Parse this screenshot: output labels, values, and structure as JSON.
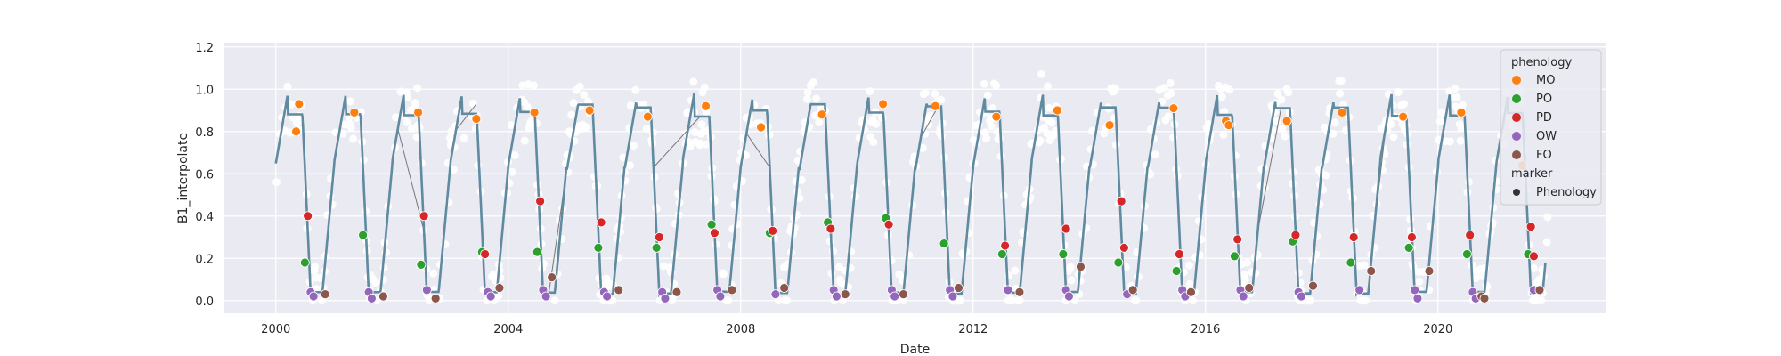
{
  "chart_data": {
    "type": "scatter",
    "xlabel": "Date",
    "ylabel": "B1_interpolate",
    "xlim": [
      1999.1,
      2022.9
    ],
    "ylim": [
      -0.06,
      1.22
    ],
    "x_ticks": [
      2000,
      2004,
      2008,
      2012,
      2016,
      2020
    ],
    "y_ticks": [
      0.0,
      0.2,
      0.4,
      0.6,
      0.8,
      1.0,
      1.2
    ],
    "x_tick_labels": [
      "2000",
      "2004",
      "2008",
      "2012",
      "2016",
      "2020"
    ],
    "y_tick_labels": [
      "0.0",
      "0.2",
      "0.4",
      "0.6",
      "0.8",
      "1.0",
      "1.2"
    ],
    "grid": true,
    "legend_position": "top-right",
    "legend": {
      "title": "phenology",
      "entries": [
        {
          "label": "MO",
          "color": "#ff7f0e"
        },
        {
          "label": "PO",
          "color": "#2ca02c"
        },
        {
          "label": "PD",
          "color": "#d62728"
        },
        {
          "label": "OW",
          "color": "#9467bd"
        },
        {
          "label": "FO",
          "color": "#8c564b"
        }
      ],
      "marker_title": "marker",
      "marker_entries": [
        {
          "label": "Phenology",
          "color": "#333333"
        }
      ]
    },
    "colors": {
      "background": "#eaeaf2",
      "grid": "#ffffff",
      "curve": "#5f8aa0",
      "raw_points": "#ffffff",
      "gap_line": "#777777"
    },
    "series": [
      {
        "name": "MO",
        "color": "#ff7f0e",
        "points": [
          [
            2000.35,
            0.8
          ],
          [
            2000.4,
            0.93
          ],
          [
            2001.35,
            0.89
          ],
          [
            2002.45,
            0.89
          ],
          [
            2003.45,
            0.86
          ],
          [
            2004.45,
            0.89
          ],
          [
            2005.4,
            0.9
          ],
          [
            2006.4,
            0.87
          ],
          [
            2007.4,
            0.92
          ],
          [
            2008.35,
            0.82
          ],
          [
            2009.4,
            0.88
          ],
          [
            2010.45,
            0.93
          ],
          [
            2011.35,
            0.92
          ],
          [
            2012.4,
            0.87
          ],
          [
            2013.45,
            0.9
          ],
          [
            2014.35,
            0.83
          ],
          [
            2015.45,
            0.91
          ],
          [
            2016.35,
            0.85
          ],
          [
            2016.4,
            0.83
          ],
          [
            2017.4,
            0.85
          ],
          [
            2018.35,
            0.89
          ],
          [
            2019.4,
            0.87
          ],
          [
            2020.4,
            0.89
          ],
          [
            2021.45,
            0.64
          ]
        ]
      },
      {
        "name": "PO",
        "color": "#2ca02c",
        "points": [
          [
            2000.5,
            0.18
          ],
          [
            2001.5,
            0.31
          ],
          [
            2002.5,
            0.17
          ],
          [
            2003.55,
            0.23
          ],
          [
            2004.5,
            0.23
          ],
          [
            2005.55,
            0.25
          ],
          [
            2006.55,
            0.25
          ],
          [
            2007.5,
            0.36
          ],
          [
            2008.5,
            0.32
          ],
          [
            2009.5,
            0.37
          ],
          [
            2010.5,
            0.39
          ],
          [
            2011.5,
            0.27
          ],
          [
            2012.5,
            0.22
          ],
          [
            2013.55,
            0.22
          ],
          [
            2014.5,
            0.18
          ],
          [
            2015.5,
            0.14
          ],
          [
            2016.5,
            0.21
          ],
          [
            2017.5,
            0.28
          ],
          [
            2018.5,
            0.18
          ],
          [
            2019.5,
            0.25
          ],
          [
            2020.5,
            0.22
          ],
          [
            2021.55,
            0.22
          ]
        ]
      },
      {
        "name": "PD",
        "color": "#d62728",
        "points": [
          [
            2000.55,
            0.4
          ],
          [
            2002.55,
            0.4
          ],
          [
            2003.6,
            0.22
          ],
          [
            2004.55,
            0.47
          ],
          [
            2005.6,
            0.37
          ],
          [
            2006.6,
            0.3
          ],
          [
            2007.55,
            0.32
          ],
          [
            2008.55,
            0.33
          ],
          [
            2009.55,
            0.34
          ],
          [
            2010.55,
            0.36
          ],
          [
            2012.55,
            0.26
          ],
          [
            2013.6,
            0.34
          ],
          [
            2014.55,
            0.47
          ],
          [
            2014.6,
            0.25
          ],
          [
            2015.55,
            0.22
          ],
          [
            2016.55,
            0.29
          ],
          [
            2017.55,
            0.31
          ],
          [
            2018.55,
            0.3
          ],
          [
            2019.55,
            0.3
          ],
          [
            2020.55,
            0.31
          ],
          [
            2021.6,
            0.35
          ],
          [
            2021.65,
            0.21
          ]
        ]
      },
      {
        "name": "OW",
        "color": "#9467bd",
        "points": [
          [
            2000.6,
            0.04
          ],
          [
            2000.65,
            0.02
          ],
          [
            2001.6,
            0.04
          ],
          [
            2001.65,
            0.01
          ],
          [
            2002.6,
            0.05
          ],
          [
            2003.65,
            0.04
          ],
          [
            2003.7,
            0.02
          ],
          [
            2004.6,
            0.05
          ],
          [
            2004.65,
            0.02
          ],
          [
            2005.65,
            0.04
          ],
          [
            2005.7,
            0.02
          ],
          [
            2006.65,
            0.04
          ],
          [
            2006.7,
            0.01
          ],
          [
            2007.6,
            0.05
          ],
          [
            2007.65,
            0.02
          ],
          [
            2008.6,
            0.03
          ],
          [
            2009.6,
            0.05
          ],
          [
            2009.65,
            0.02
          ],
          [
            2010.6,
            0.05
          ],
          [
            2010.65,
            0.02
          ],
          [
            2011.6,
            0.05
          ],
          [
            2011.65,
            0.02
          ],
          [
            2012.6,
            0.05
          ],
          [
            2013.6,
            0.05
          ],
          [
            2013.65,
            0.02
          ],
          [
            2014.65,
            0.03
          ],
          [
            2015.6,
            0.05
          ],
          [
            2015.65,
            0.02
          ],
          [
            2016.6,
            0.05
          ],
          [
            2016.65,
            0.02
          ],
          [
            2017.6,
            0.04
          ],
          [
            2017.65,
            0.02
          ],
          [
            2018.65,
            0.05
          ],
          [
            2019.6,
            0.05
          ],
          [
            2019.65,
            0.01
          ],
          [
            2020.6,
            0.04
          ],
          [
            2020.65,
            0.01
          ],
          [
            2021.65,
            0.05
          ]
        ]
      },
      {
        "name": "FO",
        "color": "#8c564b",
        "points": [
          [
            2000.85,
            0.03
          ],
          [
            2001.85,
            0.02
          ],
          [
            2002.75,
            0.01
          ],
          [
            2003.85,
            0.06
          ],
          [
            2004.75,
            0.11
          ],
          [
            2005.9,
            0.05
          ],
          [
            2006.9,
            0.04
          ],
          [
            2007.85,
            0.05
          ],
          [
            2008.75,
            0.06
          ],
          [
            2009.8,
            0.03
          ],
          [
            2010.8,
            0.03
          ],
          [
            2011.75,
            0.06
          ],
          [
            2012.8,
            0.04
          ],
          [
            2013.85,
            0.16
          ],
          [
            2014.75,
            0.05
          ],
          [
            2015.75,
            0.04
          ],
          [
            2016.75,
            0.06
          ],
          [
            2017.85,
            0.07
          ],
          [
            2018.85,
            0.14
          ],
          [
            2019.85,
            0.14
          ],
          [
            2020.75,
            0.02
          ],
          [
            2020.8,
            0.01
          ],
          [
            2021.75,
            0.05
          ]
        ]
      }
    ]
  }
}
